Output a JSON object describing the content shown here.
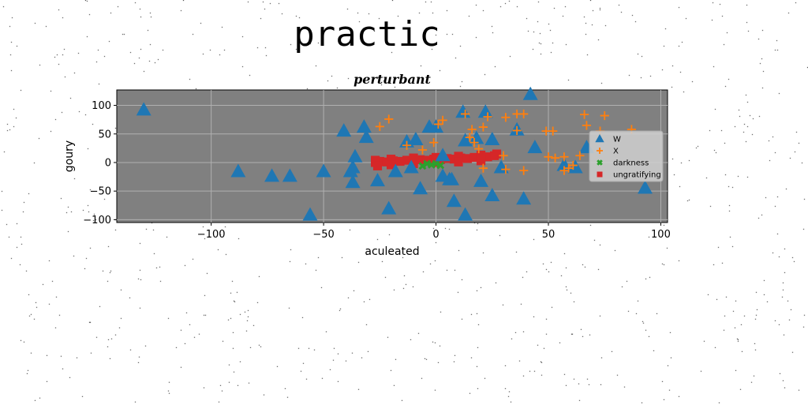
{
  "figure": {
    "suptitle": "practic"
  },
  "chart_data": {
    "type": "scatter",
    "title": "perturbant",
    "xlabel": "aculeated",
    "ylabel": "goury",
    "xlim": [
      -142,
      103
    ],
    "ylim": [
      -105,
      127
    ],
    "xticks": [
      -100,
      -50,
      0,
      50,
      100
    ],
    "yticks": [
      -100,
      -50,
      0,
      50,
      100
    ],
    "grid": true,
    "legend_position": "center-right",
    "background": "#808080",
    "series": [
      {
        "name": "W",
        "marker": "triangle",
        "color": "#1f77b4",
        "points": [
          [
            -130,
            92
          ],
          [
            -88,
            -16
          ],
          [
            -73,
            -24
          ],
          [
            -65,
            -24
          ],
          [
            -50,
            -16
          ],
          [
            -56,
            -92
          ],
          [
            -41,
            55
          ],
          [
            -38,
            -16
          ],
          [
            -37,
            -9
          ],
          [
            -36,
            10
          ],
          [
            -37,
            -35
          ],
          [
            -32,
            62
          ],
          [
            -31,
            44
          ],
          [
            -26,
            -32
          ],
          [
            -21,
            -81
          ],
          [
            -18,
            -16
          ],
          [
            -13,
            36
          ],
          [
            -11,
            -9
          ],
          [
            -9,
            40
          ],
          [
            -7,
            -46
          ],
          [
            -3,
            62
          ],
          [
            0,
            62
          ],
          [
            3,
            12
          ],
          [
            3,
            -24
          ],
          [
            6,
            -30
          ],
          [
            7,
            -30
          ],
          [
            8,
            -68
          ],
          [
            12,
            88
          ],
          [
            13,
            38
          ],
          [
            13,
            -92
          ],
          [
            18,
            42
          ],
          [
            20,
            -33
          ],
          [
            22,
            88
          ],
          [
            25,
            40
          ],
          [
            25,
            -58
          ],
          [
            29,
            -9
          ],
          [
            36,
            57
          ],
          [
            39,
            -64
          ],
          [
            42,
            119
          ],
          [
            44,
            26
          ],
          [
            57,
            -5
          ],
          [
            62,
            -9
          ],
          [
            67,
            26
          ],
          [
            93,
            -45
          ]
        ]
      },
      {
        "name": "X",
        "marker": "plus",
        "color": "#ff7f0e",
        "points": [
          [
            -25,
            63
          ],
          [
            -21,
            76
          ],
          [
            -13,
            30
          ],
          [
            -6,
            22
          ],
          [
            -1,
            35
          ],
          [
            1,
            67
          ],
          [
            3,
            74
          ],
          [
            13,
            85
          ],
          [
            15,
            44
          ],
          [
            16,
            58
          ],
          [
            17,
            35
          ],
          [
            19,
            24
          ],
          [
            21,
            -10
          ],
          [
            21,
            62
          ],
          [
            23,
            80
          ],
          [
            30,
            12
          ],
          [
            31,
            -12
          ],
          [
            31,
            79
          ],
          [
            36,
            85
          ],
          [
            36,
            56
          ],
          [
            39,
            85
          ],
          [
            39,
            -14
          ],
          [
            49,
            55
          ],
          [
            50,
            10
          ],
          [
            53,
            8
          ],
          [
            52,
            55
          ],
          [
            57,
            -14
          ],
          [
            57,
            10
          ],
          [
            59,
            -10
          ],
          [
            61,
            -5
          ],
          [
            64,
            12
          ],
          [
            66,
            84
          ],
          [
            67,
            65
          ],
          [
            73,
            55
          ],
          [
            75,
            82
          ],
          [
            87,
            58
          ]
        ]
      },
      {
        "name": "darkness",
        "marker": "x",
        "color": "#2ca02c",
        "points": [
          [
            -4,
            -2
          ],
          [
            -2,
            -4
          ],
          [
            0,
            -2
          ],
          [
            2,
            -5
          ],
          [
            -6,
            -6
          ]
        ]
      },
      {
        "name": "ungratifying",
        "marker": "square",
        "color": "#d62728",
        "points": [
          [
            -27,
            0
          ],
          [
            -25,
            2
          ],
          [
            -22,
            1
          ],
          [
            -19,
            3
          ],
          [
            -16,
            2
          ],
          [
            -13,
            4
          ],
          [
            -10,
            3
          ],
          [
            -7,
            5
          ],
          [
            -4,
            4
          ],
          [
            -1,
            6
          ],
          [
            2,
            5
          ],
          [
            5,
            7
          ],
          [
            8,
            6
          ],
          [
            11,
            8
          ],
          [
            14,
            7
          ],
          [
            17,
            9
          ],
          [
            20,
            8
          ],
          [
            23,
            10
          ],
          [
            26,
            12
          ],
          [
            27,
            15
          ],
          [
            -27,
            4
          ],
          [
            -20,
            6
          ],
          [
            -10,
            8
          ],
          [
            0,
            9
          ],
          [
            10,
            11
          ],
          [
            20,
            13
          ],
          [
            -26,
            -6
          ],
          [
            -20,
            -4
          ],
          [
            -10,
            -2
          ],
          [
            0,
            0
          ],
          [
            10,
            1
          ],
          [
            20,
            3
          ]
        ]
      }
    ]
  }
}
